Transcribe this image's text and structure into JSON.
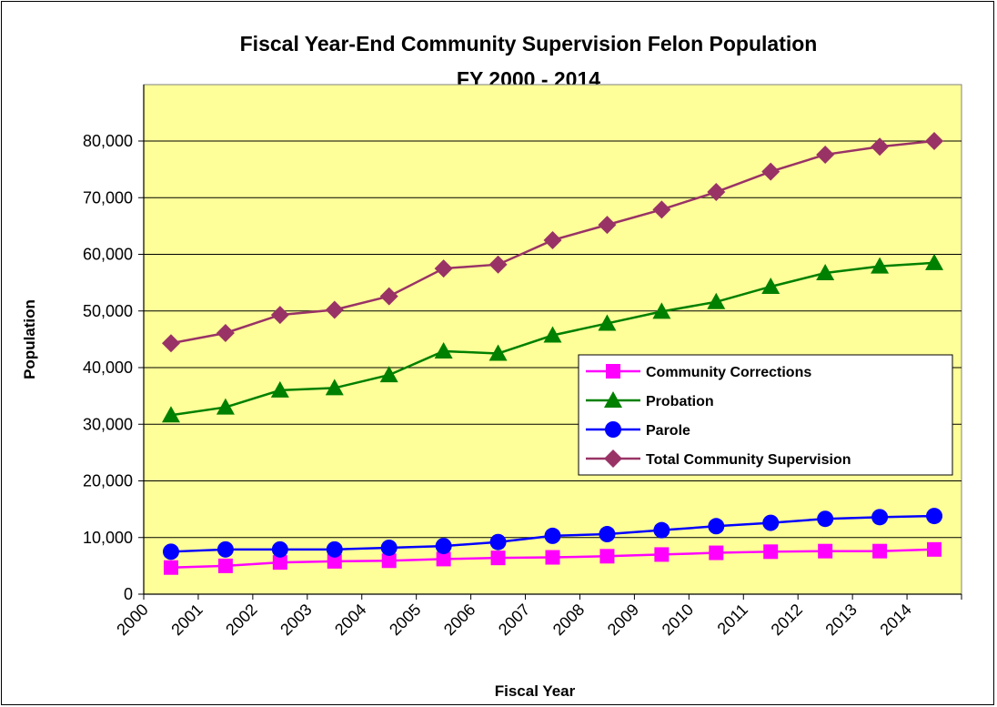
{
  "chart_data": {
    "type": "line",
    "title": "Fiscal Year-End Community Supervision Felon Population",
    "subtitle": "FY 2000 - 2014",
    "xlabel": "Fiscal Year",
    "ylabel": "Population",
    "ylim": [
      0,
      80000
    ],
    "yticks": [
      "0",
      "10,000",
      "20,000",
      "30,000",
      "40,000",
      "50,000",
      "60,000",
      "70,000",
      "80,000"
    ],
    "categories": [
      "2000",
      "2001",
      "2002",
      "2003",
      "2004",
      "2005",
      "2006",
      "2007",
      "2008",
      "2009",
      "2010",
      "2011",
      "2012",
      "2013",
      "2014"
    ],
    "grid": true,
    "legend_position": "right",
    "plot_background": "#ffff99",
    "series": [
      {
        "name": "Community Corrections",
        "color": "#ff00ff",
        "marker": "square",
        "values": [
          4700,
          5000,
          5600,
          5800,
          5900,
          6200,
          6400,
          6500,
          6700,
          7000,
          7300,
          7500,
          7600,
          7600,
          7900
        ]
      },
      {
        "name": "Probation",
        "color": "#008000",
        "marker": "triangle",
        "values": [
          31600,
          33000,
          36000,
          36400,
          38700,
          42900,
          42500,
          45700,
          47800,
          49900,
          51600,
          54300,
          56700,
          57900,
          58500
        ]
      },
      {
        "name": "Parole",
        "color": "#0000ff",
        "marker": "circle",
        "values": [
          7500,
          7900,
          7900,
          7900,
          8200,
          8500,
          9200,
          10300,
          10600,
          11300,
          12000,
          12600,
          13300,
          13600,
          13800
        ]
      },
      {
        "name": "Total Community Supervision",
        "color": "#993366",
        "marker": "diamond",
        "values": [
          44300,
          46100,
          49300,
          50200,
          52600,
          57500,
          58200,
          62500,
          65200,
          67900,
          71000,
          74600,
          77600,
          79000,
          80000
        ]
      }
    ]
  }
}
